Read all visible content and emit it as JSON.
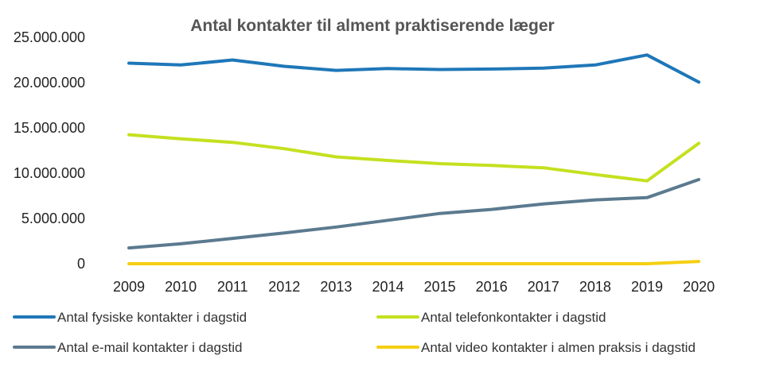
{
  "chart_data": {
    "type": "line",
    "title": "Antal kontakter til alment praktiserende læger",
    "xlabel": "",
    "ylabel": "",
    "x": [
      "2009",
      "2010",
      "2011",
      "2012",
      "2013",
      "2014",
      "2015",
      "2016",
      "2017",
      "2018",
      "2019",
      "2020"
    ],
    "ylim": [
      0,
      25000000
    ],
    "yticks": [
      0,
      5000000,
      10000000,
      15000000,
      20000000,
      25000000
    ],
    "ytick_labels": [
      "0",
      "5.000.000",
      "10.000.000",
      "15.000.000",
      "20.000.000",
      "25.000.000"
    ],
    "grid": false,
    "legend_position": "bottom",
    "series": [
      {
        "name": "Antal fysiske kontakter i dagstid",
        "color": "#1f77b8",
        "values": [
          22150000,
          21950000,
          22500000,
          21800000,
          21350000,
          21550000,
          21450000,
          21500000,
          21600000,
          21950000,
          23050000,
          20050000
        ]
      },
      {
        "name": "Antal telefonkontakter i dagstid",
        "color": "#c5e020",
        "values": [
          14250000,
          13800000,
          13400000,
          12700000,
          11800000,
          11400000,
          11050000,
          10850000,
          10600000,
          9850000,
          9150000,
          13300000
        ]
      },
      {
        "name": "Antal e-mail kontakter i dagstid",
        "color": "#5b7a8f",
        "values": [
          1750000,
          2200000,
          2800000,
          3400000,
          4050000,
          4800000,
          5550000,
          6000000,
          6600000,
          7050000,
          7300000,
          9300000
        ]
      },
      {
        "name": "Antal video kontakter i almen praksis i dagstid",
        "color": "#f5cf12",
        "values": [
          0,
          0,
          0,
          0,
          0,
          0,
          0,
          0,
          0,
          0,
          0,
          250000
        ]
      }
    ]
  }
}
